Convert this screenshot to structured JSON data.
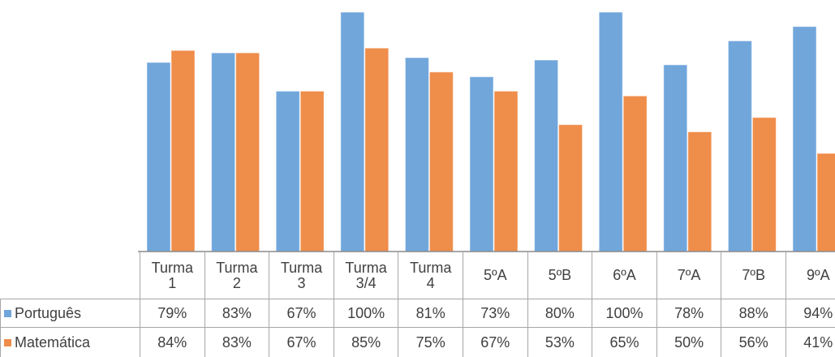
{
  "chart_data": {
    "type": "bar",
    "categories": [
      "Turma 1",
      "Turma 2",
      "Turma 3",
      "Turma 3/4",
      "Turma 4",
      "5ºA",
      "5ºB",
      "6ºA",
      "7ºA",
      "7ºB",
      "9ºA"
    ],
    "series": [
      {
        "name": "Português",
        "color": "#71a6db",
        "values": [
          79,
          83,
          67,
          100,
          81,
          73,
          80,
          100,
          78,
          88,
          94
        ],
        "value_labels": [
          "79%",
          "83%",
          "67%",
          "100%",
          "81%",
          "73%",
          "80%",
          "100%",
          "78%",
          "88%",
          "94%"
        ]
      },
      {
        "name": "Matemática",
        "color": "#ef8d4a",
        "values": [
          84,
          83,
          67,
          85,
          75,
          67,
          53,
          65,
          50,
          56,
          41
        ],
        "value_labels": [
          "84%",
          "83%",
          "67%",
          "85%",
          "75%",
          "67%",
          "53%",
          "65%",
          "50%",
          "56%",
          "41%"
        ]
      }
    ],
    "ylim": [
      0,
      100
    ]
  }
}
